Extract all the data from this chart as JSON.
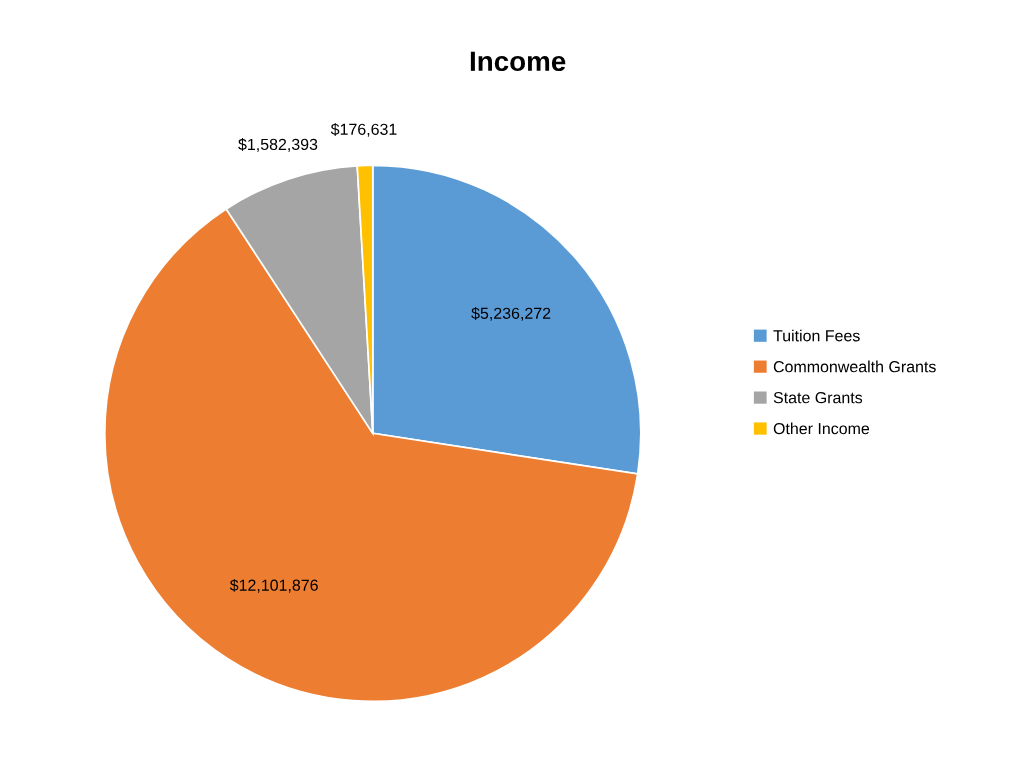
{
  "chart_data": {
    "type": "pie",
    "title": "Income",
    "categories": [
      "Tuition Fees",
      "Commonwealth Grants",
      "State Grants",
      "Other Income"
    ],
    "values": [
      5236272,
      12101876,
      1582393,
      176631
    ],
    "colors": [
      "#5b9bd5",
      "#ed7d31",
      "#a5a5a5",
      "#ffc000"
    ],
    "value_labels": [
      "$5,236,272",
      "$12,101,876",
      "$1,582,393",
      "$176,631"
    ],
    "legend": "right"
  }
}
